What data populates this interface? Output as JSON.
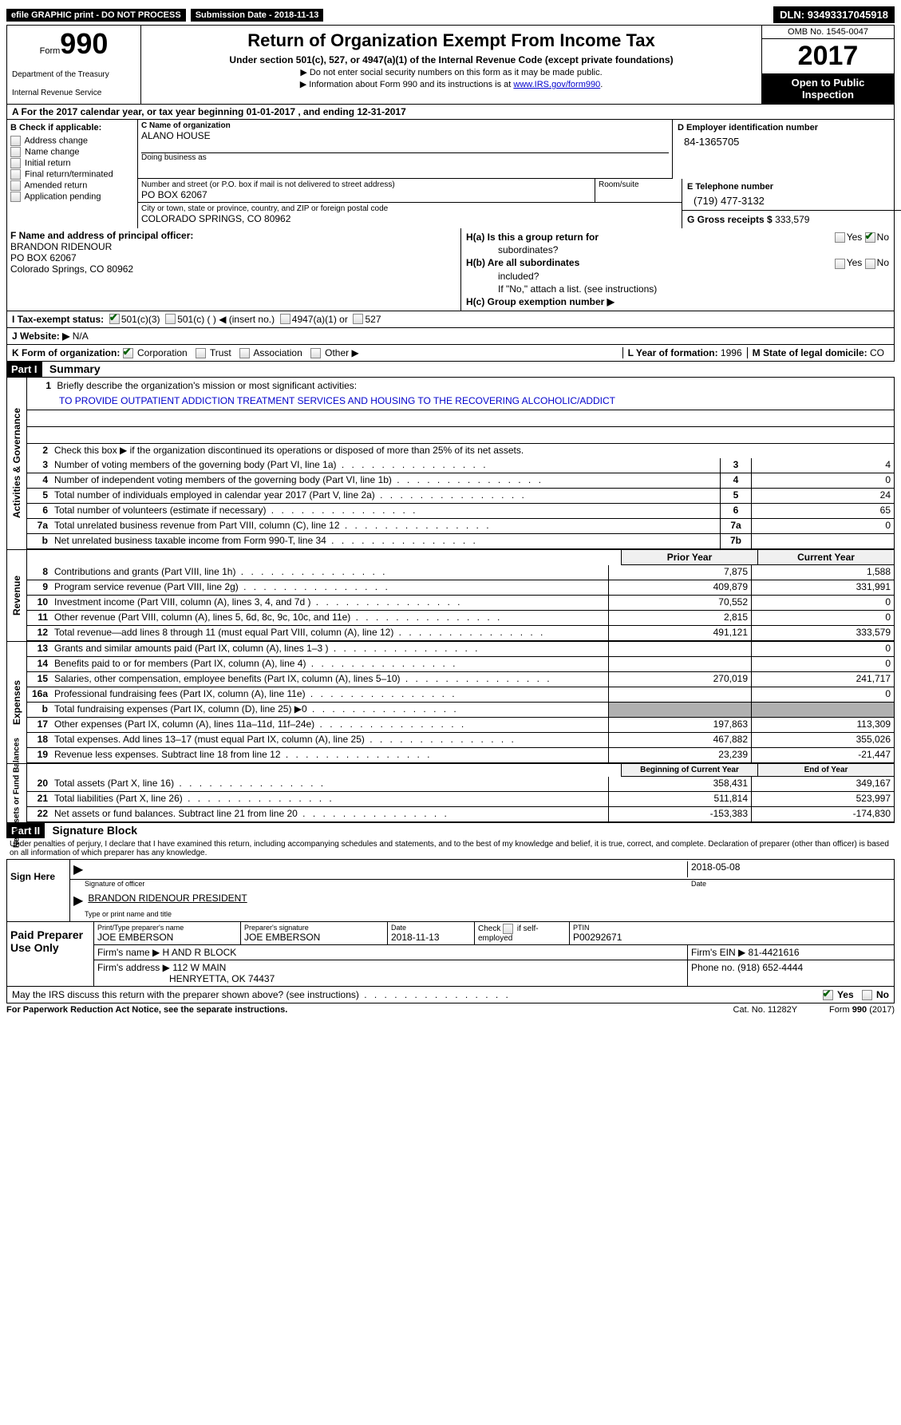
{
  "topbar": {
    "efile": "efile GRAPHIC print - DO NOT PROCESS",
    "submission_label": "Submission Date -",
    "submission_date": "2018-11-13",
    "dln_label": "DLN:",
    "dln": "93493317045918"
  },
  "header": {
    "form_word": "Form",
    "form_number": "990",
    "dept1": "Department of the Treasury",
    "dept2": "Internal Revenue Service",
    "title": "Return of Organization Exempt From Income Tax",
    "sub1": "Under section 501(c), 527, or 4947(a)(1) of the Internal Revenue Code (except private foundations)",
    "sub2": "▶ Do not enter social security numbers on this form as it may be made public.",
    "sub3_pre": "▶ Information about Form 990 and its instructions is at ",
    "sub3_link": "www.IRS.gov/form990",
    "omb": "OMB No. 1545-0047",
    "year": "2017",
    "otp1": "Open to Public",
    "otp2": "Inspection"
  },
  "section_a": "A  For the 2017 calendar year, or tax year beginning 01-01-2017   , and ending 12-31-2017",
  "section_b": {
    "title": "B Check if applicable:",
    "opts": [
      "Address change",
      "Name change",
      "Initial return",
      "Final return/terminated",
      "Amended return",
      "Application pending"
    ]
  },
  "section_c": {
    "name_lbl": "C Name of organization",
    "name": "ALANO HOUSE",
    "dba_lbl": "Doing business as",
    "addr_lbl": "Number and street (or P.O. box if mail is not delivered to street address)",
    "addr": "PO BOX 62067",
    "suite_lbl": "Room/suite",
    "city_lbl": "City or town, state or province, country, and ZIP or foreign postal code",
    "city": "COLORADO SPRINGS, CO  80962"
  },
  "section_d": {
    "lbl": "D Employer identification number",
    "val": "84-1365705"
  },
  "section_e": {
    "lbl": "E Telephone number",
    "val": "(719) 477-3132"
  },
  "section_g": {
    "lbl": "G Gross receipts $",
    "val": "333,579"
  },
  "section_f": {
    "lbl": "F Name and address of principal officer:",
    "line1": "BRANDON RIDENOUR",
    "line2": "PO BOX 62067",
    "line3": "Colorado Springs, CO  80962"
  },
  "section_h": {
    "a_lbl": "H(a)  Is this a group return for",
    "a_lbl2": "subordinates?",
    "b_lbl": "H(b)  Are all subordinates",
    "b_lbl2": "included?",
    "note": "If \"No,\" attach a list. (see instructions)",
    "c_lbl": "H(c)  Group exemption number ▶"
  },
  "tax_status": {
    "lbl": "I   Tax-exempt status:",
    "opt1": "501(c)(3)",
    "opt2": "501(c) (   ) ◀ (insert no.)",
    "opt3": "4947(a)(1) or",
    "opt4": "527"
  },
  "website": {
    "lbl": "J  Website: ▶",
    "val": "N/A"
  },
  "section_k": {
    "lbl": "K Form of organization:",
    "opts": [
      "Corporation",
      "Trust",
      "Association",
      "Other ▶"
    ],
    "l_lbl": "L Year of formation:",
    "l_val": "1996",
    "m_lbl": "M State of legal domicile:",
    "m_val": "CO"
  },
  "part1": {
    "header": "Part I",
    "title": "Summary",
    "vlabel_gov": "Activities & Governance",
    "vlabel_rev": "Revenue",
    "vlabel_exp": "Expenses",
    "vlabel_net": "Net Assets or\nFund Balances",
    "line1_lbl": "Briefly describe the organization's mission or most significant activities:",
    "mission": "TO PROVIDE OUTPATIENT ADDICTION TREATMENT SERVICES AND HOUSING TO THE RECOVERING ALCOHOLIC/ADDICT",
    "line2": "Check this box ▶      if the organization discontinued its operations or disposed of more than 25% of its net assets.",
    "lines_single": [
      {
        "n": "3",
        "desc": "Number of voting members of the governing body (Part VI, line 1a)",
        "box": "3",
        "val": "4"
      },
      {
        "n": "4",
        "desc": "Number of independent voting members of the governing body (Part VI, line 1b)",
        "box": "4",
        "val": "0"
      },
      {
        "n": "5",
        "desc": "Total number of individuals employed in calendar year 2017 (Part V, line 2a)",
        "box": "5",
        "val": "24"
      },
      {
        "n": "6",
        "desc": "Total number of volunteers (estimate if necessary)",
        "box": "6",
        "val": "65"
      },
      {
        "n": "7a",
        "desc": "Total unrelated business revenue from Part VIII, column (C), line 12",
        "box": "7a",
        "val": "0"
      },
      {
        "n": "b",
        "desc": "Net unrelated business taxable income from Form 990-T, line 34",
        "box": "7b",
        "val": ""
      }
    ],
    "col_prior": "Prior Year",
    "col_current": "Current Year",
    "rev_lines": [
      {
        "n": "8",
        "desc": "Contributions and grants (Part VIII, line 1h)",
        "p": "7,875",
        "c": "1,588"
      },
      {
        "n": "9",
        "desc": "Program service revenue (Part VIII, line 2g)",
        "p": "409,879",
        "c": "331,991"
      },
      {
        "n": "10",
        "desc": "Investment income (Part VIII, column (A), lines 3, 4, and 7d )",
        "p": "70,552",
        "c": "0"
      },
      {
        "n": "11",
        "desc": "Other revenue (Part VIII, column (A), lines 5, 6d, 8c, 9c, 10c, and 11e)",
        "p": "2,815",
        "c": "0"
      },
      {
        "n": "12",
        "desc": "Total revenue—add lines 8 through 11 (must equal Part VIII, column (A), line 12)",
        "p": "491,121",
        "c": "333,579"
      }
    ],
    "exp_lines": [
      {
        "n": "13",
        "desc": "Grants and similar amounts paid (Part IX, column (A), lines 1–3 )",
        "p": "",
        "c": "0"
      },
      {
        "n": "14",
        "desc": "Benefits paid to or for members (Part IX, column (A), line 4)",
        "p": "",
        "c": "0"
      },
      {
        "n": "15",
        "desc": "Salaries, other compensation, employee benefits (Part IX, column (A), lines 5–10)",
        "p": "270,019",
        "c": "241,717"
      },
      {
        "n": "16a",
        "desc": "Professional fundraising fees (Part IX, column (A), line 11e)",
        "p": "",
        "c": "0"
      },
      {
        "n": "b",
        "desc": "Total fundraising expenses (Part IX, column (D), line 25) ▶0",
        "p": "grey",
        "c": "grey"
      },
      {
        "n": "17",
        "desc": "Other expenses (Part IX, column (A), lines 11a–11d, 11f–24e)",
        "p": "197,863",
        "c": "113,309"
      },
      {
        "n": "18",
        "desc": "Total expenses. Add lines 13–17 (must equal Part IX, column (A), line 25)",
        "p": "467,882",
        "c": "355,026"
      },
      {
        "n": "19",
        "desc": "Revenue less expenses. Subtract line 18 from line 12",
        "p": "23,239",
        "c": "-21,447"
      }
    ],
    "col_begin": "Beginning of Current Year",
    "col_end": "End of Year",
    "net_lines": [
      {
        "n": "20",
        "desc": "Total assets (Part X, line 16)",
        "p": "358,431",
        "c": "349,167"
      },
      {
        "n": "21",
        "desc": "Total liabilities (Part X, line 26)",
        "p": "511,814",
        "c": "523,997"
      },
      {
        "n": "22",
        "desc": "Net assets or fund balances. Subtract line 21 from line 20",
        "p": "-153,383",
        "c": "-174,830"
      }
    ]
  },
  "part2": {
    "header": "Part II",
    "title": "Signature Block",
    "declaration": "Under penalties of perjury, I declare that I have examined this return, including accompanying schedules and statements, and to the best of my knowledge and belief, it is true, correct, and complete. Declaration of preparer (other than officer) is based on all information of which preparer has any knowledge.",
    "sign_here": "Sign Here",
    "sig_date": "2018-05-08",
    "sig_lbl": "Signature of officer",
    "date_lbl": "Date",
    "officer": "BRANDON RIDENOUR  PRESIDENT",
    "officer_lbl": "Type or print name and title",
    "paid_label": "Paid Preparer Use Only",
    "prep_name_lbl": "Print/Type preparer's name",
    "prep_name": "JOE EMBERSON",
    "prep_sig_lbl": "Preparer's signature",
    "prep_sig": "JOE EMBERSON",
    "prep_date_lbl": "Date",
    "prep_date": "2018-11-13",
    "check_lbl": "Check       if self-employed",
    "ptin_lbl": "PTIN",
    "ptin": "P00292671",
    "firm_name_lbl": "Firm's name     ▶",
    "firm_name": "H AND R BLOCK",
    "firm_ein_lbl": "Firm's EIN ▶",
    "firm_ein": "81-4421616",
    "firm_addr_lbl": "Firm's address ▶",
    "firm_addr1": "112 W MAIN",
    "firm_addr2": "HENRYETTA, OK  74437",
    "phone_lbl": "Phone no.",
    "phone": "(918) 652-4444",
    "discuss": "May the IRS discuss this return with the preparer shown above? (see instructions)"
  },
  "footer": {
    "left": "For Paperwork Reduction Act Notice, see the separate instructions.",
    "mid": "Cat. No. 11282Y",
    "right": "Form 990 (2017)"
  }
}
